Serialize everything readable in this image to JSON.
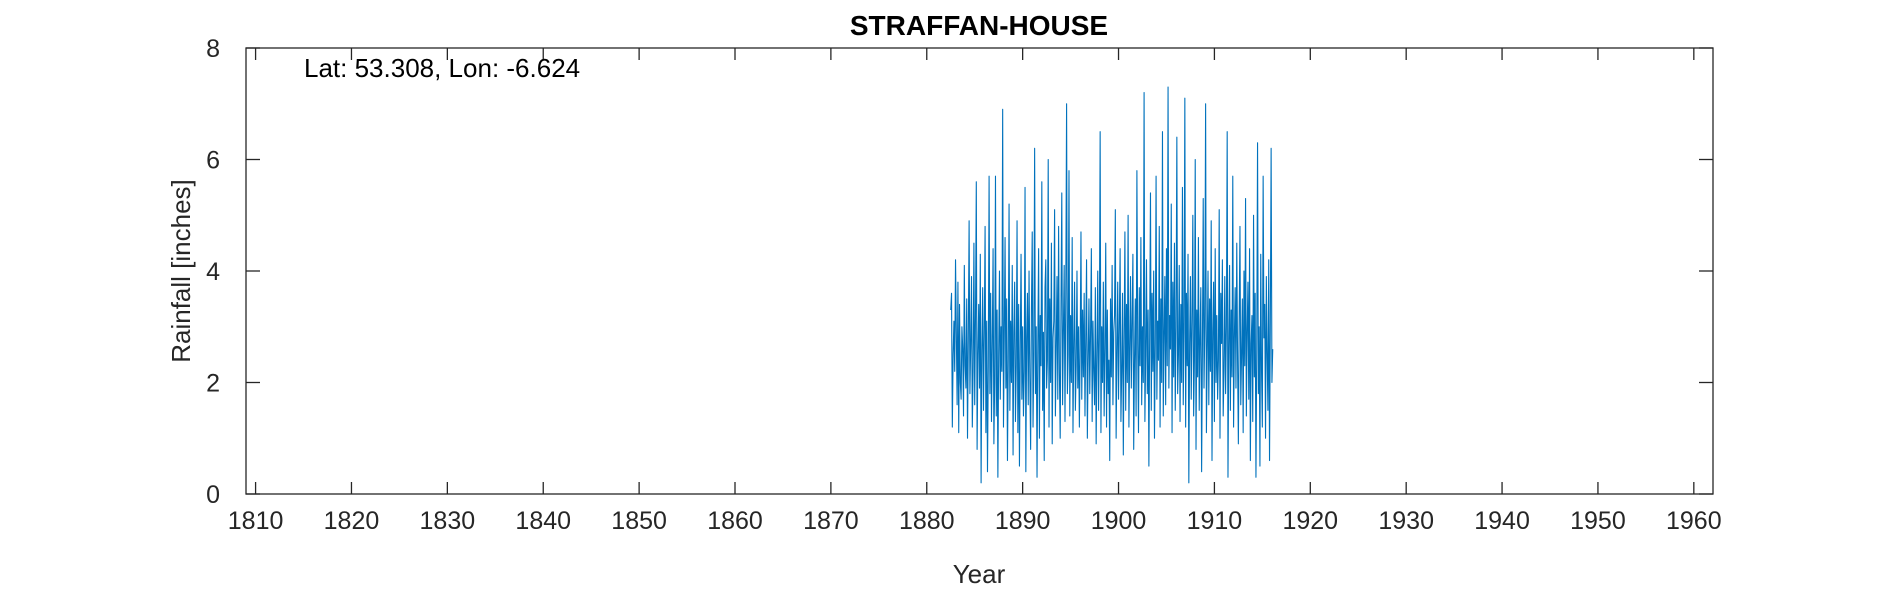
{
  "chart_data": {
    "type": "line",
    "title": "STRAFFAN-HOUSE",
    "annotation": "Lat: 53.308, Lon: -6.624",
    "xlabel": "Year",
    "ylabel": "Rainfall [inches]",
    "xlim": [
      1809,
      1962
    ],
    "ylim": [
      0,
      8
    ],
    "xticks": [
      1810,
      1820,
      1830,
      1840,
      1850,
      1860,
      1870,
      1880,
      1890,
      1900,
      1910,
      1920,
      1930,
      1940,
      1950,
      1960
    ],
    "yticks": [
      0,
      2,
      4,
      6,
      8
    ],
    "grid": false,
    "line_color": "#0072BD",
    "series": [
      {
        "x_start": 1882.5,
        "x_step": 0.08333,
        "values": [
          3.3,
          3.6,
          1.2,
          2.5,
          3.1,
          2.2,
          4.2,
          2.9,
          1.6,
          3.8,
          1.1,
          3.4,
          2.0,
          1.7,
          3.0,
          2.6,
          1.4,
          4.1,
          2.3,
          1.9,
          3.5,
          1.0,
          2.8,
          4.9,
          1.8,
          2.7,
          3.9,
          1.2,
          2.2,
          4.5,
          1.6,
          3.2,
          5.6,
          0.8,
          2.5,
          3.4,
          1.9,
          4.3,
          0.2,
          2.6,
          3.7,
          1.5,
          2.9,
          4.8,
          1.1,
          3.1,
          0.4,
          2.3,
          5.7,
          1.8,
          3.6,
          1.3,
          2.7,
          4.4,
          0.9,
          2.0,
          5.7,
          1.4,
          3.3,
          0.3,
          2.5,
          4.0,
          1.7,
          3.0,
          2.2,
          6.9,
          1.2,
          2.8,
          4.6,
          1.9,
          3.5,
          0.6,
          2.4,
          5.2,
          1.5,
          3.1,
          2.0,
          4.1,
          0.7,
          2.9,
          3.8,
          1.3,
          2.3,
          4.9,
          1.1,
          3.4,
          0.5,
          2.6,
          4.3,
          1.7,
          3.0,
          1.4,
          2.2,
          5.5,
          0.4,
          2.8,
          3.6,
          1.6,
          4.0,
          2.1,
          0.8,
          3.3,
          4.7,
          1.2,
          2.5,
          6.2,
          1.8,
          3.0,
          0.3,
          2.7,
          4.4,
          1.0,
          3.2,
          2.3,
          5.6,
          1.5,
          2.9,
          0.6,
          3.7,
          4.2,
          1.9,
          2.4,
          6.0,
          1.2,
          3.5,
          2.0,
          4.5,
          0.9,
          2.8,
          3.1,
          5.1,
          1.4,
          2.6,
          3.9,
          1.7,
          4.8,
          2.2,
          1.0,
          3.4,
          5.4,
          1.6,
          2.9,
          4.1,
          1.3,
          3.6,
          7.0,
          1.8,
          2.5,
          5.8,
          1.4,
          3.2,
          2.0,
          4.6,
          1.1,
          2.7,
          3.8,
          1.5,
          2.3,
          4.0,
          1.9,
          3.0,
          1.2,
          2.6,
          4.7,
          1.7,
          3.3,
          2.1,
          3.6,
          1.4,
          2.8,
          4.2,
          1.0,
          2.4,
          3.5,
          1.8,
          2.9,
          4.4,
          1.3,
          3.1,
          2.2,
          1.6,
          3.7,
          0.9,
          2.5,
          4.0,
          1.5,
          2.8,
          6.5,
          1.1,
          3.0,
          2.0,
          3.8,
          1.4,
          2.6,
          4.5,
          1.2,
          3.3,
          1.8,
          2.4,
          0.6,
          3.5,
          2.1,
          4.1,
          1.6,
          2.9,
          3.2,
          5.1,
          1.0,
          2.5,
          3.8,
          1.7,
          3.0,
          4.4,
          1.3,
          2.2,
          3.6,
          0.7,
          2.8,
          4.7,
          1.5,
          3.4,
          2.0,
          5.0,
          1.2,
          2.6,
          3.9,
          1.9,
          3.1,
          4.3,
          0.8,
          2.4,
          3.5,
          1.4,
          5.8,
          2.7,
          1.1,
          3.7,
          2.3,
          4.6,
          1.6,
          3.0,
          2.0,
          7.2,
          1.3,
          2.5,
          4.2,
          1.8,
          3.3,
          0.5,
          2.9,
          5.4,
          1.5,
          3.6,
          2.2,
          4.0,
          1.0,
          2.7,
          5.7,
          1.7,
          3.1,
          2.4,
          4.8,
          1.2,
          3.5,
          2.0,
          6.5,
          1.4,
          2.8,
          3.9,
          1.6,
          4.4,
          2.3,
          7.3,
          1.9,
          3.2,
          2.6,
          5.2,
          1.1,
          3.8,
          2.1,
          4.5,
          1.5,
          3.0,
          6.4,
          1.8,
          2.5,
          4.1,
          1.3,
          3.4,
          2.0,
          5.5,
          1.6,
          2.9,
          7.1,
          1.2,
          3.6,
          2.3,
          4.3,
          0.2,
          2.7,
          3.9,
          1.7,
          3.1,
          5.0,
          1.4,
          2.4,
          6.0,
          0.8,
          3.3,
          2.1,
          4.6,
          1.5,
          2.8,
          3.7,
          0.4,
          2.6,
          5.3,
          1.9,
          3.0,
          7.0,
          1.1,
          2.5,
          4.0,
          1.6,
          3.5,
          2.2,
          4.9,
          0.6,
          2.9,
          3.8,
          1.3,
          4.4,
          2.0,
          3.2,
          1.7,
          2.4,
          5.1,
          1.0,
          3.6,
          2.7,
          4.2,
          1.4,
          2.2,
          3.9,
          1.8,
          3.0,
          6.5,
          0.3,
          2.6,
          4.1,
          1.5,
          3.3,
          2.1,
          5.7,
          1.2,
          2.8,
          3.7,
          1.9,
          4.5,
          2.4,
          0.9,
          3.1,
          4.8,
          1.6,
          2.5,
          3.5,
          1.1,
          4.0,
          2.3,
          5.3,
          1.4,
          2.9,
          3.8,
          1.7,
          4.4,
          0.6,
          2.7,
          3.2,
          1.3,
          5.0,
          2.1,
          3.6,
          0.3,
          2.6,
          6.3,
          1.8,
          3.0,
          0.5,
          4.3,
          2.2,
          1.2,
          5.7,
          2.8,
          3.4,
          1.0,
          3.9,
          2.5,
          1.5,
          4.2,
          0.6,
          3.1,
          6.2,
          2.0,
          2.6
        ]
      }
    ]
  }
}
